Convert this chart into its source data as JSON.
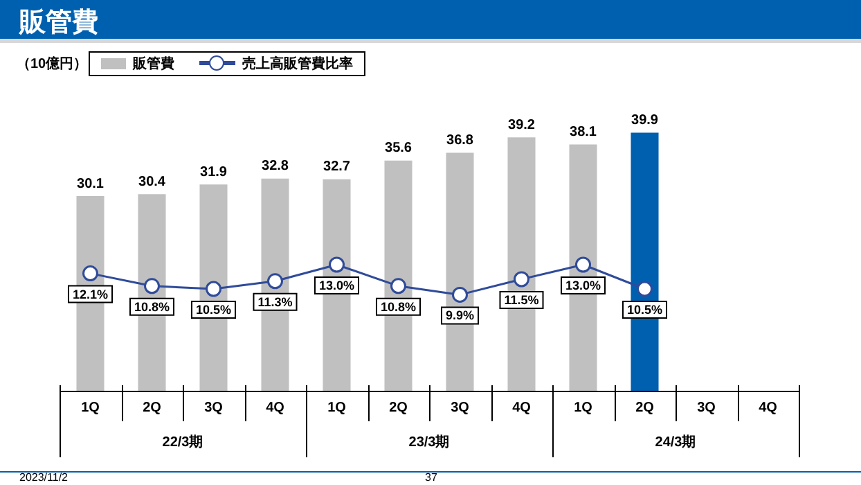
{
  "chart_data": {
    "type": "bar",
    "title": "販管費",
    "ylabel": "（10億円）",
    "categories": [
      "1Q",
      "2Q",
      "3Q",
      "4Q",
      "1Q",
      "2Q",
      "3Q",
      "4Q",
      "1Q",
      "2Q",
      "3Q",
      "4Q"
    ],
    "series": [
      {
        "name": "販管費",
        "color": "#c0c0c0",
        "colors": [
          "#c0c0c0",
          "#c0c0c0",
          "#c0c0c0",
          "#c0c0c0",
          "#c0c0c0",
          "#c0c0c0",
          "#c0c0c0",
          "#c0c0c0",
          "#c0c0c0",
          "#0060b0",
          null,
          null
        ],
        "values": [
          30.1,
          30.4,
          31.9,
          32.8,
          32.7,
          35.6,
          36.8,
          39.2,
          38.1,
          39.9,
          null,
          null
        ],
        "value_labels": [
          "30.1",
          "30.4",
          "31.9",
          "32.8",
          "32.7",
          "35.6",
          "36.8",
          "39.2",
          "38.1",
          "39.9",
          null,
          null
        ]
      },
      {
        "name": "売上高販管費比率",
        "type": "line",
        "axis": "y2",
        "color": "#2f4b9a",
        "values": [
          12.1,
          10.8,
          10.5,
          11.3,
          13.0,
          10.8,
          9.9,
          11.5,
          13.0,
          10.5,
          null,
          null
        ],
        "value_labels": [
          "12.1%",
          "10.8%",
          "10.5%",
          "11.3%",
          "13.0%",
          "10.8%",
          "9.9%",
          "11.5%",
          "13.0%",
          "10.5%",
          null,
          null
        ]
      }
    ],
    "relative": false,
    "marker": "circle",
    "legend": "top left",
    "grid": false,
    "annotations": [
      "22/3期",
      "23/3期",
      "24/3期",
      "2023/11/2",
      "37"
    ]
  }
}
